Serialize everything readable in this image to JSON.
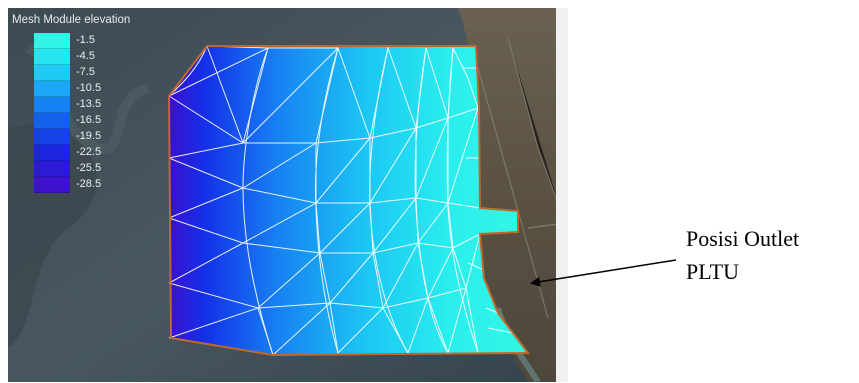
{
  "legend": {
    "title": "Mesh Module elevation",
    "items": [
      {
        "label": "-1.5",
        "color": "#2ff5e4"
      },
      {
        "label": "-4.5",
        "color": "#23e6ef"
      },
      {
        "label": "-7.5",
        "color": "#1fcaf3"
      },
      {
        "label": "-10.5",
        "color": "#1aa7f5"
      },
      {
        "label": "-13.5",
        "color": "#1583f3"
      },
      {
        "label": "-16.5",
        "color": "#1460ee"
      },
      {
        "label": "-19.5",
        "color": "#1640e8"
      },
      {
        "label": "-22.5",
        "color": "#1c26de"
      },
      {
        "label": "-25.5",
        "color": "#2c1ad6"
      },
      {
        "label": "-28.5",
        "color": "#3e12cc"
      }
    ]
  },
  "annotation": {
    "line1": "Posisi Outlet",
    "line2": "PLTU"
  },
  "colors": {
    "mesh_boundary": "#c0682c",
    "mesh_lines": "#ffffff",
    "land": "#5b5347",
    "sea": "#47545a"
  }
}
